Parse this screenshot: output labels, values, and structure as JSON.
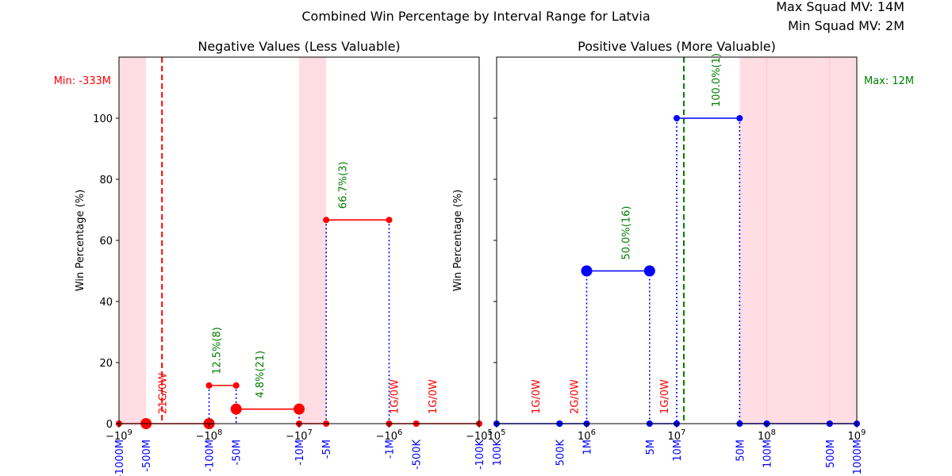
{
  "title": "Combined Win Percentage by Interval Range for Latvia",
  "max_squad_mv": "Max Squad MV: 14M",
  "min_squad_mv": "Min Squad MV: 2M",
  "colors": {
    "shade": "#ffdde3",
    "points": "#ff0000",
    "points_right": "#0000ff",
    "line_left": "#ff0000",
    "line_right": "#0000ff",
    "drop": "#0000ff",
    "label_pct": "#008000",
    "label_zero": "#ff0000",
    "min_line": "#ff0000",
    "max_line": "#008000",
    "tick_text_blue": "#0000ff"
  },
  "chart_data": [
    {
      "type": "line",
      "title": "Negative Values (Less Valuable)",
      "ylabel": "Win Percentage (%)",
      "xscale": "symlog (negative)",
      "xlim": [
        -1000000000,
        -100000
      ],
      "ylim": [
        0,
        120
      ],
      "yticks": [
        0,
        20,
        40,
        60,
        80,
        100
      ],
      "xtick_labels_main": [
        {
          "x": -1000000000,
          "label": "−10^9"
        },
        {
          "x": -100000000,
          "label": "−10^8"
        },
        {
          "x": -10000000,
          "label": "−10^7"
        },
        {
          "x": -1000000,
          "label": "−10^6"
        },
        {
          "x": -100000,
          "label": "−10^5"
        }
      ],
      "xtick_labels_blue": [
        {
          "x": -1000000000,
          "label": "-1000M"
        },
        {
          "x": -500000000,
          "label": "-500M"
        },
        {
          "x": -100000000,
          "label": "-100M"
        },
        {
          "x": -50000000,
          "label": "-50M"
        },
        {
          "x": -10000000,
          "label": "-10M"
        },
        {
          "x": -5000000,
          "label": "-5M"
        },
        {
          "x": -1000000,
          "label": "-1M"
        },
        {
          "x": -500000,
          "label": "-500K"
        },
        {
          "x": -100000,
          "label": "-100K"
        }
      ],
      "shaded_ranges": [
        [
          -1000000000,
          -500000000
        ],
        [
          -10000000,
          -5000000
        ]
      ],
      "min_line": {
        "x": -333000000,
        "label": "Min: -333M"
      },
      "intervals": [
        {
          "x0": -1000000000,
          "x1": -500000000,
          "y": 0,
          "size": "small",
          "label": ""
        },
        {
          "x0": -500000000,
          "x1": -100000000,
          "y": 0,
          "size": "large",
          "label": "21G/0W",
          "label_x": -300000000,
          "kind": "zero"
        },
        {
          "x0": -100000000,
          "x1": -50000000,
          "y": 12.5,
          "size": "small",
          "label": "12.5%(8)",
          "label_x": -75000000,
          "kind": "pct"
        },
        {
          "x0": -50000000,
          "x1": -10000000,
          "y": 4.76,
          "size": "large",
          "label": "4.8%(21)",
          "label_x": -25000000,
          "kind": "pct"
        },
        {
          "x0": -10000000,
          "x1": -5000000,
          "y": 0,
          "size": "small",
          "label": ""
        },
        {
          "x0": -5000000,
          "x1": -1000000,
          "y": 66.7,
          "size": "small",
          "label": "66.7%(3)",
          "label_x": -3000000,
          "kind": "pct"
        },
        {
          "x0": -1000000,
          "x1": -500000,
          "y": 0,
          "size": "small",
          "label": "1G/0W",
          "label_x": -800000,
          "kind": "zero"
        },
        {
          "x0": -500000,
          "x1": -100000,
          "y": 0,
          "size": "small",
          "label": "1G/0W",
          "label_x": -300000,
          "kind": "zero"
        }
      ]
    },
    {
      "type": "line",
      "title": "Positive Values (More Valuable)",
      "ylabel": "Win Percentage (%)",
      "xscale": "log",
      "xlim": [
        100000,
        1000000000
      ],
      "ylim": [
        0,
        120
      ],
      "yticks": [
        0,
        20,
        40,
        60,
        80,
        100
      ],
      "xtick_labels_main": [
        {
          "x": 100000,
          "label": "10^5"
        },
        {
          "x": 1000000,
          "label": "10^6"
        },
        {
          "x": 10000000,
          "label": "10^7"
        },
        {
          "x": 100000000,
          "label": "10^8"
        },
        {
          "x": 1000000000,
          "label": "10^9"
        }
      ],
      "xtick_labels_blue": [
        {
          "x": 100000,
          "label": "100K"
        },
        {
          "x": 500000,
          "label": "500K"
        },
        {
          "x": 1000000,
          "label": "1M"
        },
        {
          "x": 5000000,
          "label": "5M"
        },
        {
          "x": 10000000,
          "label": "10M"
        },
        {
          "x": 50000000,
          "label": "50M"
        },
        {
          "x": 100000000,
          "label": "100M"
        },
        {
          "x": 500000000,
          "label": "500M"
        },
        {
          "x": 1000000000,
          "label": "1000M"
        }
      ],
      "shaded_ranges": [
        [
          50000000,
          1000000000
        ]
      ],
      "max_line": {
        "x": 12000000,
        "label": "Max: 12M"
      },
      "intervals": [
        {
          "x0": 100000,
          "x1": 500000,
          "y": 0,
          "size": "small",
          "label": "1G/0W",
          "label_x": 300000,
          "kind": "zero"
        },
        {
          "x0": 500000,
          "x1": 1000000,
          "y": 0,
          "size": "small",
          "label": "2G/0W",
          "label_x": 800000,
          "kind": "zero"
        },
        {
          "x0": 1000000,
          "x1": 5000000,
          "y": 50,
          "size": "large",
          "label": "50.0%(16)",
          "label_x": 3000000,
          "kind": "pct"
        },
        {
          "x0": 5000000,
          "x1": 10000000,
          "y": 0,
          "size": "small",
          "label": "1G/0W",
          "label_x": 8000000,
          "kind": "zero"
        },
        {
          "x0": 10000000,
          "x1": 50000000,
          "y": 100,
          "size": "small",
          "label": "100.0%(1)",
          "label_x": 30000000,
          "kind": "pct"
        },
        {
          "x0": 50000000,
          "x1": 100000000,
          "y": 0,
          "size": "small",
          "label": ""
        },
        {
          "x0": 100000000,
          "x1": 500000000,
          "y": 0,
          "size": "small",
          "label": ""
        },
        {
          "x0": 500000000,
          "x1": 1000000000,
          "y": 0,
          "size": "small",
          "label": ""
        }
      ]
    }
  ]
}
